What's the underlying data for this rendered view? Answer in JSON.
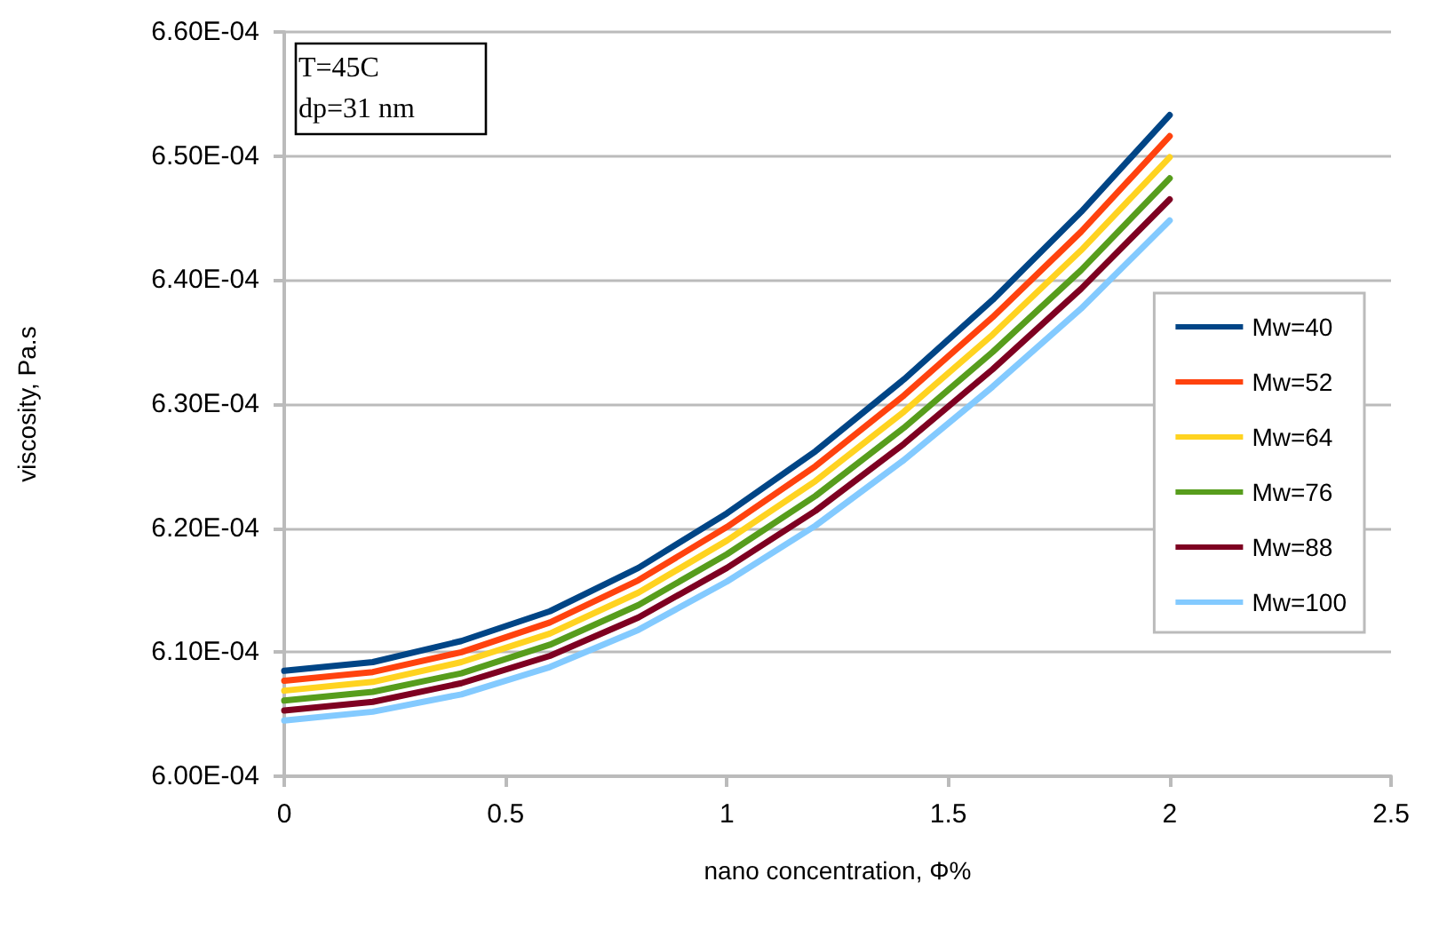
{
  "chart_data": {
    "type": "line",
    "xlabel": "nano concentration, Φ%",
    "ylabel": "viscosity, Pa.s",
    "annotations": [
      "T=45C",
      "dp=31 nm"
    ],
    "x": [
      0,
      0.2,
      0.4,
      0.6,
      0.8,
      1.0,
      1.2,
      1.4,
      1.6,
      1.8,
      2.0
    ],
    "series": [
      {
        "name": "Mw=40",
        "color": "#004586",
        "values": [
          0.0006085,
          0.0006092,
          0.0006109,
          0.0006133,
          0.0006168,
          0.0006212,
          0.0006262,
          0.000632,
          0.0006384,
          0.0006455,
          0.0006533
        ]
      },
      {
        "name": "Mw=52",
        "color": "#ff420e",
        "values": [
          0.0006077,
          0.0006084,
          0.00061,
          0.0006124,
          0.0006158,
          0.0006201,
          0.000625,
          0.0006307,
          0.000637,
          0.0006439,
          0.0006516
        ]
      },
      {
        "name": "Mw=64",
        "color": "#ffd320",
        "values": [
          0.0006069,
          0.0006076,
          0.0006092,
          0.0006115,
          0.0006148,
          0.000619,
          0.0006238,
          0.0006294,
          0.0006356,
          0.0006424,
          0.0006499
        ]
      },
      {
        "name": "Mw=76",
        "color": "#579d1c",
        "values": [
          0.0006061,
          0.0006068,
          0.0006083,
          0.0006106,
          0.0006138,
          0.0006179,
          0.0006226,
          0.0006281,
          0.0006342,
          0.0006408,
          0.0006482
        ]
      },
      {
        "name": "Mw=88",
        "color": "#7e0021",
        "values": [
          0.0006053,
          0.000606,
          0.0006075,
          0.0006097,
          0.0006128,
          0.0006168,
          0.0006214,
          0.0006268,
          0.0006328,
          0.0006393,
          0.0006465
        ]
      },
      {
        "name": "Mw=100",
        "color": "#83caff",
        "values": [
          0.0006045,
          0.0006052,
          0.0006066,
          0.0006088,
          0.0006118,
          0.0006157,
          0.0006202,
          0.0006255,
          0.0006314,
          0.0006377,
          0.0006448
        ]
      }
    ],
    "xlim": [
      0,
      2.5
    ],
    "xticks": [
      0,
      0.5,
      1,
      1.5,
      2,
      2.5
    ],
    "ylim": [
      0.0006,
      0.00066
    ],
    "yticks": [
      {
        "value": 0.0006,
        "label": "6.00E-04"
      },
      {
        "value": 0.00061,
        "label": "6.10E-04"
      },
      {
        "value": 0.00062,
        "label": "6.20E-04"
      },
      {
        "value": 0.00063,
        "label": "6.30E-04"
      },
      {
        "value": 0.00064,
        "label": "6.40E-04"
      },
      {
        "value": 0.00065,
        "label": "6.50E-04"
      },
      {
        "value": 0.00066,
        "label": "6.60E-04"
      }
    ],
    "grid": "y",
    "legend": "right",
    "marker": "none",
    "line_style": "solid"
  }
}
